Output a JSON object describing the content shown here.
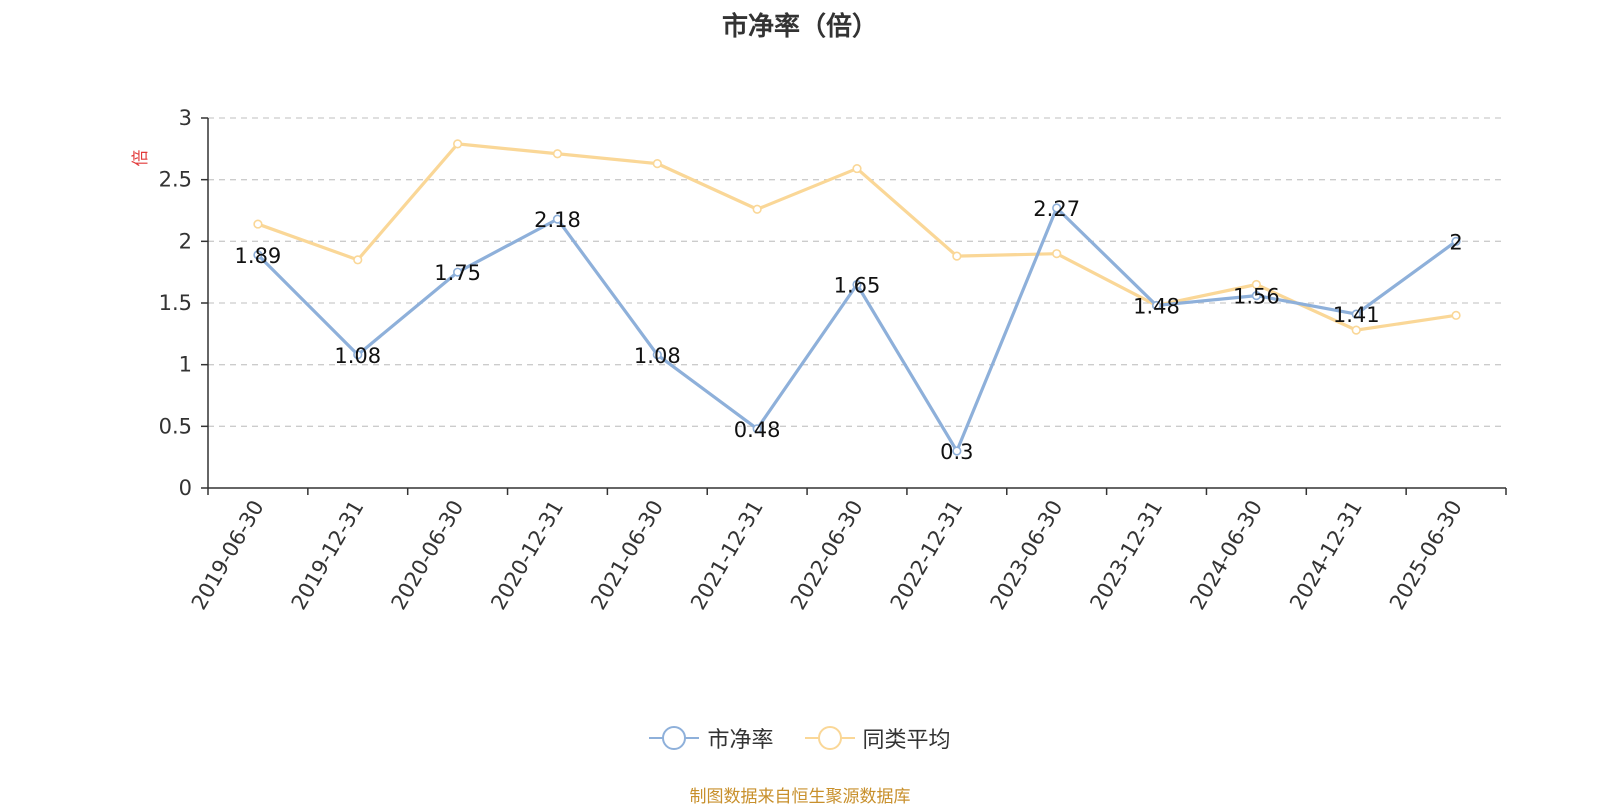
{
  "colors": {
    "series_pb": "#8eb0da",
    "series_avg": "#fad797",
    "axis": "#333333",
    "grid": "#cccccc",
    "unit": "#e23b3b",
    "footer": "#c8902c"
  },
  "chart_data": {
    "type": "line",
    "title": "市净率（倍）",
    "ylabel": "倍",
    "xlabel": "",
    "ylim": [
      0,
      3
    ],
    "yticks": [
      "0",
      "0.5",
      "1",
      "1.5",
      "2",
      "2.5",
      "3"
    ],
    "grid": true,
    "legend_position": "bottom",
    "categories": [
      "2019-06-30",
      "2019-12-31",
      "2020-06-30",
      "2020-12-31",
      "2021-06-30",
      "2021-12-31",
      "2022-06-30",
      "2022-12-31",
      "2023-06-30",
      "2023-12-31",
      "2024-06-30",
      "2024-12-31",
      "2025-06-30"
    ],
    "series": [
      {
        "name": "市净率",
        "values": [
          1.89,
          1.08,
          1.75,
          2.18,
          1.08,
          0.48,
          1.65,
          0.3,
          2.27,
          1.48,
          1.56,
          1.41,
          2
        ],
        "labels": [
          "1.89",
          "1.08",
          "1.75",
          "2.18",
          "1.08",
          "0.48",
          "1.65",
          "0.3",
          "2.27",
          "1.48",
          "1.56",
          "1.41",
          "2"
        ]
      },
      {
        "name": "同类平均",
        "values": [
          2.14,
          1.85,
          2.79,
          2.71,
          2.63,
          2.26,
          2.59,
          1.88,
          1.9,
          1.48,
          1.65,
          1.28,
          1.4
        ]
      }
    ]
  },
  "footer": "制图数据来自恒生聚源数据库"
}
